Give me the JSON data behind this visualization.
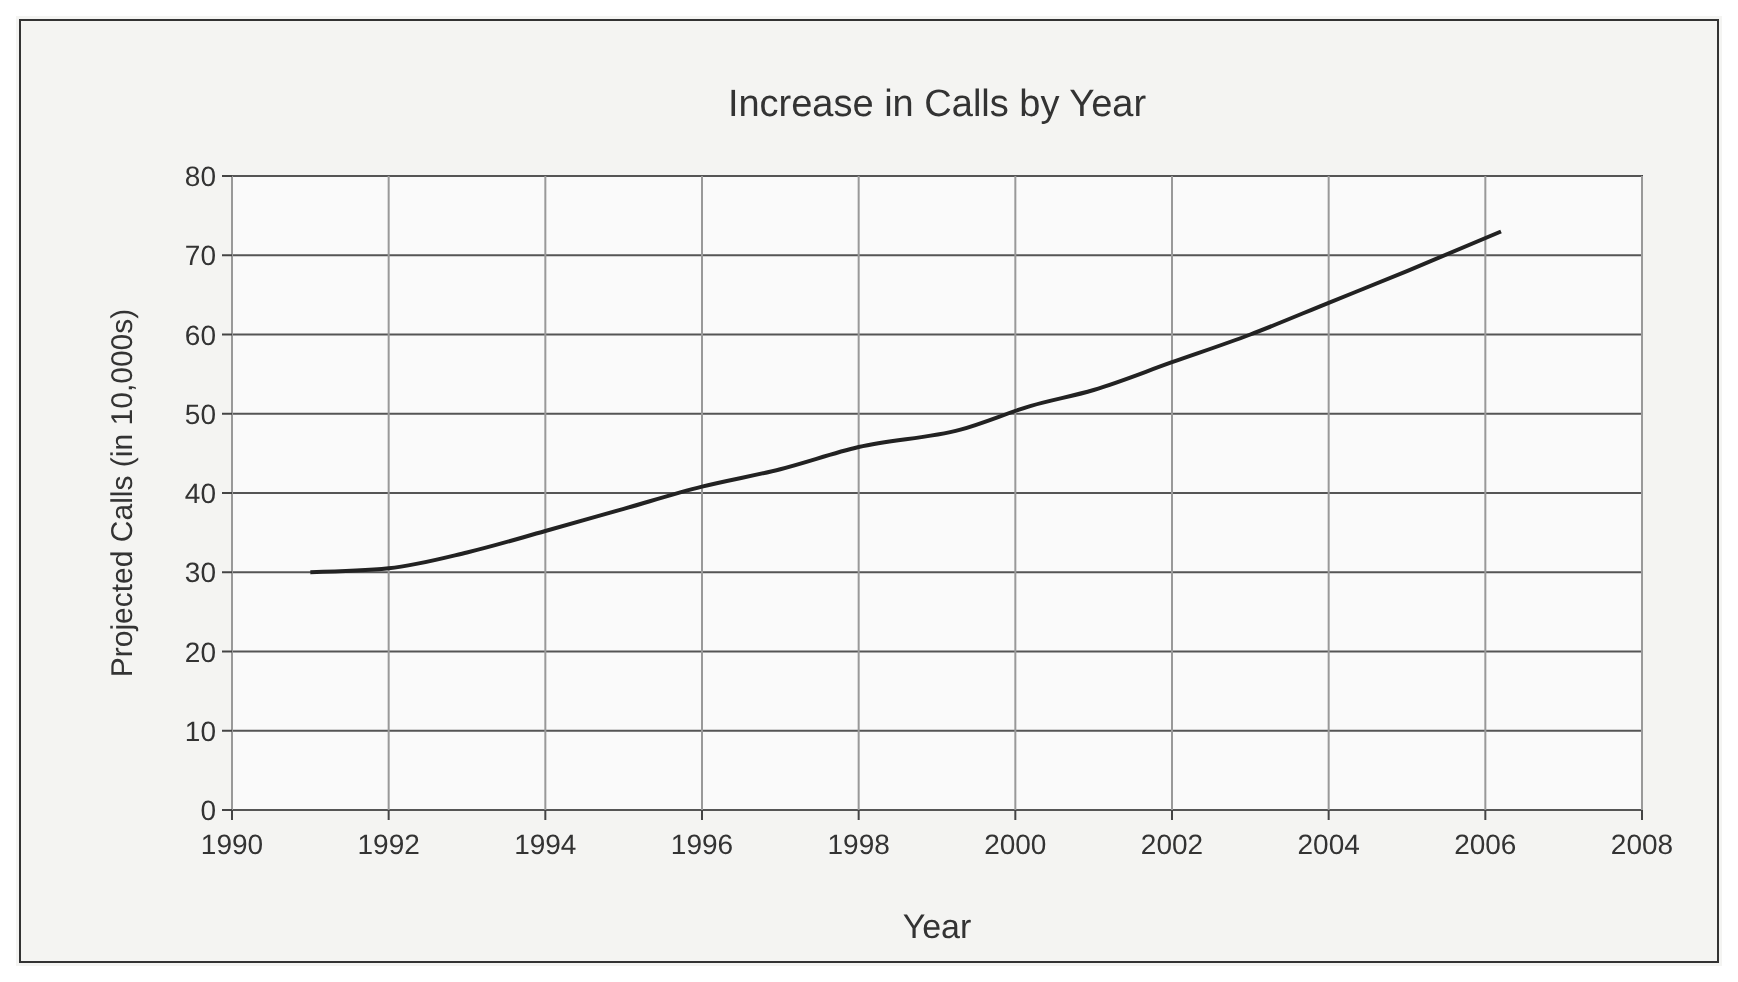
{
  "chart_data": {
    "type": "line",
    "title": "Increase in Calls by Year",
    "xlabel": "Year",
    "ylabel": "Projected Calls (in 10,000s)",
    "x": [
      1991,
      1992,
      1993,
      1994,
      1995,
      1996,
      1997,
      1998,
      1999.3,
      2000.2,
      2001,
      2002,
      2003,
      2004,
      2005,
      2006.2
    ],
    "series": [
      {
        "color": "#222222",
        "values": [
          30,
          30.5,
          32.5,
          35.2,
          38,
          40.8,
          43,
          45.8,
          48,
          51,
          53,
          56.5,
          60,
          64,
          68,
          73
        ]
      }
    ],
    "xlim": [
      1990,
      2008
    ],
    "xticks": [
      1990,
      1992,
      1994,
      1996,
      1998,
      2000,
      2002,
      2004,
      2006,
      2008
    ],
    "ylim": [
      0,
      80
    ],
    "yticks": [
      0,
      10,
      20,
      30,
      40,
      50,
      60,
      70,
      80
    ],
    "grid": true,
    "marker": "none",
    "line_style": "solid"
  }
}
